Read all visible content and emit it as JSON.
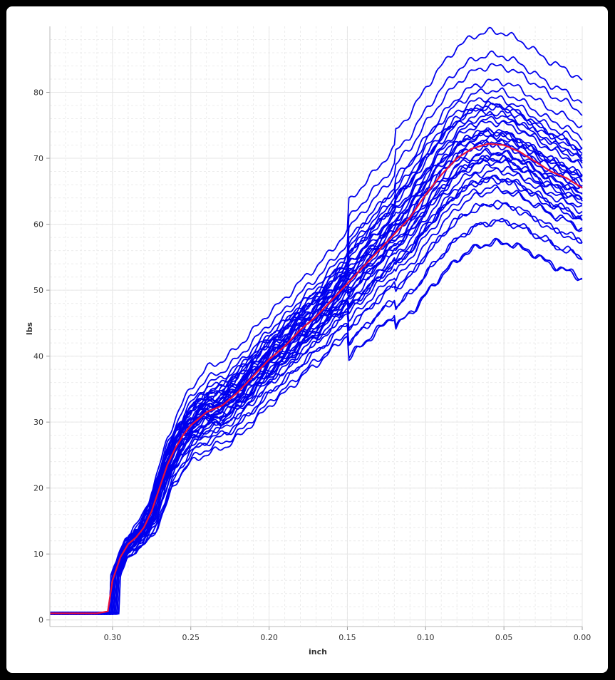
{
  "chart_data": {
    "type": "line",
    "title": "",
    "xlabel": "inch",
    "ylabel": "lbs",
    "xlim": [
      0.34,
      0.0
    ],
    "x_reversed": true,
    "ylim": [
      -1,
      90
    ],
    "x_ticks": [
      "0.30",
      "0.25",
      "0.20",
      "0.15",
      "0.10",
      "0.05",
      "0.00"
    ],
    "y_ticks": [
      "0",
      "10",
      "20",
      "30",
      "40",
      "50",
      "60",
      "70",
      "80"
    ],
    "grid": true,
    "legend": "none",
    "colors": {
      "samples": "#0000ee",
      "average": "#e8113c",
      "grid": "#e6e6e6"
    },
    "sample_count": 40,
    "series_description": "Blue lines are individual samples; red line is the average",
    "average": {
      "x": [
        0.34,
        0.31,
        0.303,
        0.3,
        0.295,
        0.29,
        0.285,
        0.28,
        0.275,
        0.27,
        0.265,
        0.26,
        0.255,
        0.25,
        0.245,
        0.24,
        0.23,
        0.22,
        0.21,
        0.2,
        0.19,
        0.18,
        0.17,
        0.16,
        0.15,
        0.14,
        0.13,
        0.12,
        0.11,
        0.1,
        0.09,
        0.08,
        0.07,
        0.06,
        0.05,
        0.04,
        0.03,
        0.02,
        0.01,
        0.0
      ],
      "y": [
        1.0,
        1.0,
        1.3,
        6.0,
        9.5,
        11.5,
        12.5,
        14.0,
        16.5,
        20.0,
        23.5,
        26.0,
        28.0,
        29.5,
        30.5,
        31.5,
        32.5,
        34.5,
        37.0,
        39.5,
        41.5,
        44.0,
        46.0,
        48.5,
        51.0,
        53.5,
        56.0,
        58.5,
        61.0,
        64.5,
        67.5,
        70.0,
        71.5,
        72.2,
        72.0,
        71.0,
        69.5,
        68.0,
        67.0,
        65.5
      ]
    },
    "sample_variation": {
      "shift": [
        -0.5,
        0.3,
        -1.2,
        1.5,
        -2.5,
        2.2,
        -0.8,
        0.9,
        -1.8,
        3.2,
        -3.2,
        0.1,
        1.1,
        -1.4,
        2.7,
        -0.3,
        0.6,
        -2.0,
        1.8,
        -0.6,
        4.5,
        -4.5,
        0.4,
        -1.0,
        2.0,
        -2.8,
        1.3,
        -0.1,
        3.8,
        -3.8,
        0.8,
        -1.6,
        2.4,
        -0.9,
        1.6,
        -2.2,
        0.2,
        -0.4,
        6.0,
        -5.5
      ],
      "peak_scale": [
        0.98,
        1.02,
        0.95,
        1.05,
        0.92,
        1.04,
        0.99,
        1.01,
        0.96,
        1.07,
        0.9,
        1.0,
        1.03,
        0.97,
        1.06,
        0.99,
        1.0,
        0.94,
        1.03,
        0.98,
        1.1,
        0.88,
        1.01,
        0.97,
        1.04,
        0.93,
        1.02,
        1.0,
        1.09,
        0.91,
        1.01,
        0.96,
        1.05,
        0.98,
        1.03,
        0.95,
        1.0,
        0.99,
        1.12,
        0.9
      ],
      "onset": [
        0.3,
        0.301,
        0.299,
        0.302,
        0.298,
        0.3,
        0.297,
        0.301,
        0.3,
        0.299,
        0.296,
        0.302,
        0.3,
        0.298,
        0.301,
        0.3,
        0.299,
        0.297,
        0.302,
        0.3,
        0.3,
        0.296,
        0.301,
        0.299,
        0.3,
        0.298,
        0.3,
        0.301,
        0.299,
        0.297,
        0.3,
        0.298,
        0.301,
        0.3,
        0.299,
        0.3,
        0.298,
        0.3,
        0.3,
        0.297
      ]
    }
  }
}
